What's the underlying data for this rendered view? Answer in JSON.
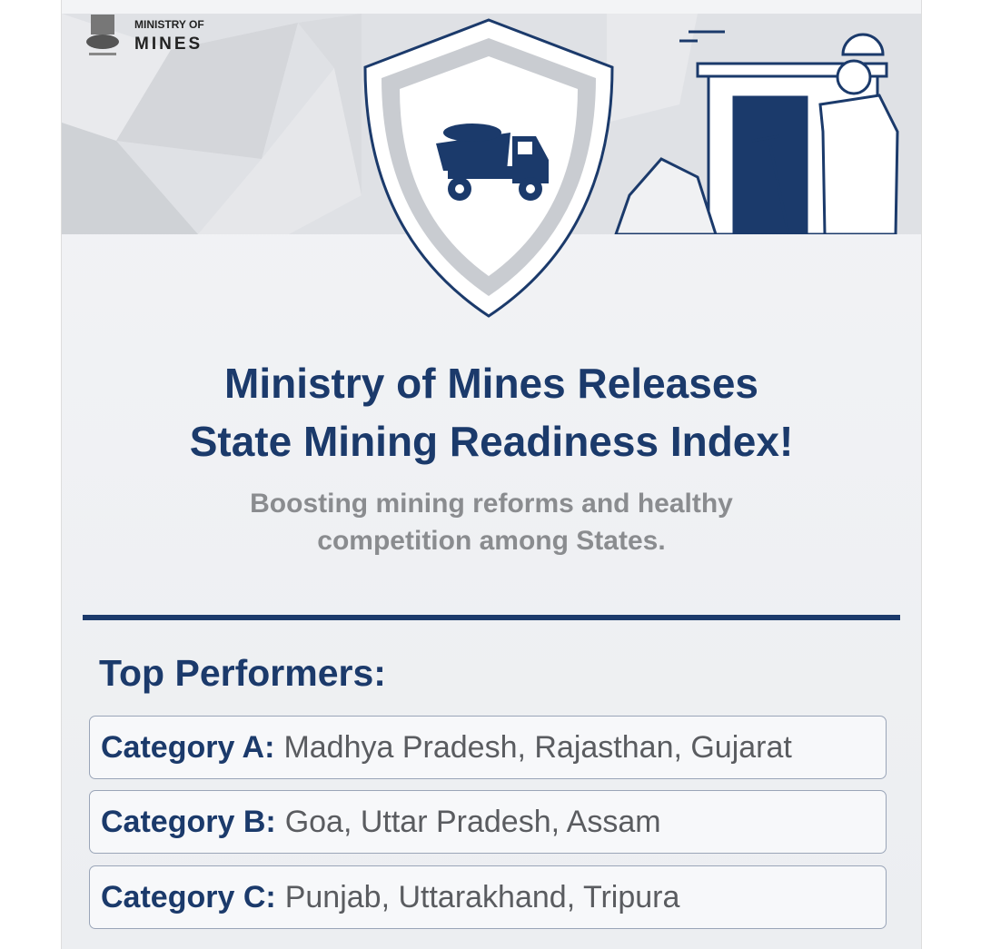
{
  "header": {
    "logo_line1": "MINISTRY OF",
    "logo_line2": "MINES"
  },
  "title": [
    "Ministry of Mines Releases",
    "State Mining Readiness Index!"
  ],
  "subtitle": [
    "Boosting mining reforms and healthy",
    "competition among States."
  ],
  "section_heading": "Top Performers:",
  "categories": [
    {
      "label": "Category A:",
      "states": "Madhya Pradesh, Rajasthan, Gujarat"
    },
    {
      "label": "Category B:",
      "states": "Goa, Uttar Pradesh, Assam"
    },
    {
      "label": "Category C:",
      "states": "Punjab, Uttarakhand, Tripura"
    }
  ]
}
